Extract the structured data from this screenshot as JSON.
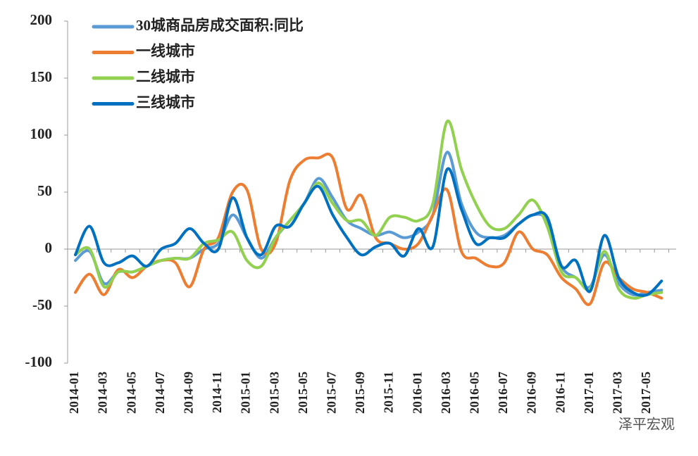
{
  "chart_data": {
    "type": "line",
    "categories": [
      "2014-01",
      null,
      "2014-03",
      null,
      "2014-05",
      null,
      "2014-07",
      null,
      "2014-09",
      null,
      "2014-11",
      null,
      "2015-01",
      null,
      "2015-03",
      null,
      "2015-05",
      null,
      "2015-07",
      null,
      "2015-09",
      null,
      "2015-11",
      null,
      "2016-01",
      null,
      "2016-03",
      null,
      "2016-05",
      null,
      "2016-07",
      null,
      "2016-09",
      null,
      "2016-11",
      null,
      "2017-01",
      null,
      "2017-03",
      null,
      "2017-05",
      null
    ],
    "series": [
      {
        "name": "30城商品房成交面积:同比",
        "color": "#5b9bd5",
        "values": [
          -10,
          -2,
          -30,
          -20,
          -20,
          -15,
          -10,
          -8,
          -8,
          0,
          5,
          30,
          10,
          -8,
          10,
          25,
          40,
          62,
          45,
          25,
          18,
          12,
          15,
          10,
          15,
          30,
          85,
          40,
          15,
          10,
          12,
          22,
          30,
          25,
          -15,
          -25,
          -33,
          -5,
          -30,
          -40,
          -38,
          -36
        ]
      },
      {
        "name": "一线城市",
        "color": "#ed7d31",
        "values": [
          -38,
          -22,
          -40,
          -18,
          -25,
          -15,
          -10,
          -12,
          -33,
          0,
          10,
          50,
          52,
          0,
          5,
          60,
          78,
          80,
          80,
          35,
          47,
          10,
          5,
          0,
          5,
          30,
          52,
          -2,
          -8,
          -15,
          -12,
          15,
          0,
          -5,
          -25,
          -35,
          -48,
          -12,
          -25,
          -35,
          -38,
          -43
        ]
      },
      {
        "name": "二线城市",
        "color": "#92d050",
        "values": [
          -5,
          0,
          -33,
          -20,
          -20,
          -15,
          -10,
          -8,
          -8,
          5,
          8,
          15,
          -10,
          -15,
          10,
          25,
          40,
          58,
          40,
          25,
          25,
          12,
          28,
          28,
          25,
          40,
          112,
          70,
          40,
          20,
          18,
          30,
          43,
          20,
          -20,
          -25,
          -35,
          -2,
          -35,
          -43,
          -40,
          -38
        ]
      },
      {
        "name": "三线城市",
        "color": "#0070c0",
        "values": [
          -5,
          20,
          -12,
          -12,
          -6,
          -15,
          0,
          5,
          18,
          5,
          0,
          45,
          10,
          -5,
          20,
          20,
          40,
          55,
          30,
          10,
          -5,
          2,
          5,
          -6,
          18,
          2,
          70,
          35,
          5,
          10,
          10,
          22,
          30,
          28,
          -15,
          -10,
          -37,
          12,
          -25,
          -38,
          -40,
          -28
        ]
      }
    ],
    "ylim": [
      -100,
      200
    ],
    "yticks": [
      -100,
      -50,
      0,
      50,
      100,
      150,
      200
    ],
    "watermark": "泽平宏观"
  }
}
